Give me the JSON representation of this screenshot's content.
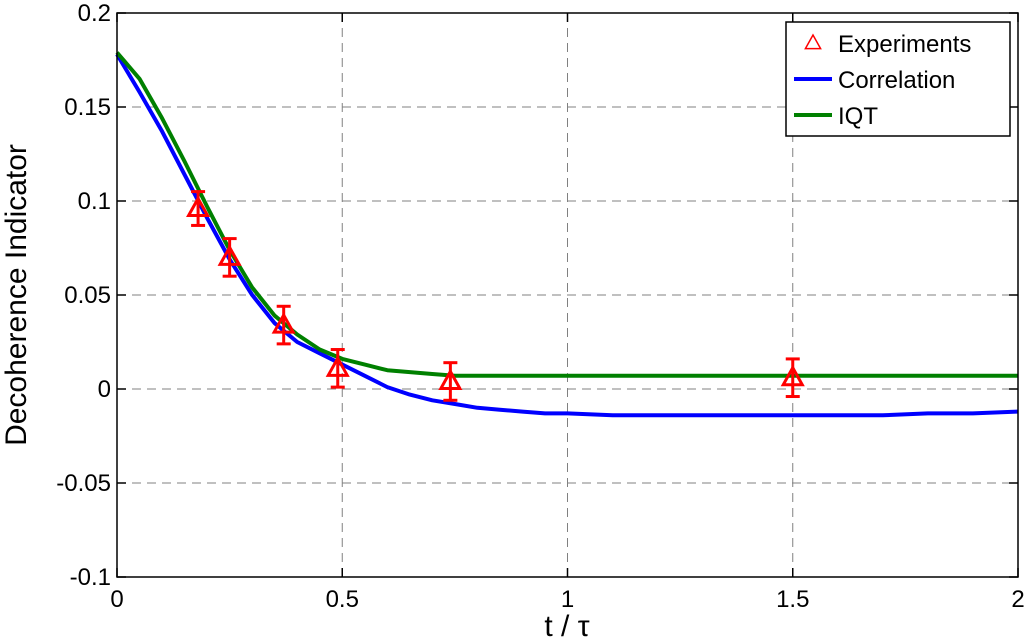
{
  "chart_data": {
    "type": "line",
    "xlabel": "t / τ",
    "ylabel": "Decoherence Indicator",
    "xlim": [
      0,
      2
    ],
    "ylim": [
      -0.1,
      0.2
    ],
    "x_ticks": [
      0,
      0.5,
      1,
      1.5,
      2
    ],
    "x_tick_labels": [
      "0",
      "0.5",
      "1",
      "1.5",
      "2"
    ],
    "y_ticks": [
      -0.1,
      -0.05,
      0,
      0.05,
      0.1,
      0.15,
      0.2
    ],
    "y_tick_labels": [
      "-0.1",
      "-0.05",
      "0",
      "0.05",
      "0.1",
      "0.15",
      "0.2"
    ],
    "grid": true,
    "legend_position": "top-right",
    "series": [
      {
        "name": "Experiments",
        "kind": "scatter-errorbar",
        "color": "#ff0000",
        "x": [
          0.18,
          0.25,
          0.37,
          0.49,
          0.74,
          1.5
        ],
        "y": [
          0.096,
          0.07,
          0.034,
          0.011,
          0.004,
          0.006
        ],
        "error": [
          0.009,
          0.01,
          0.01,
          0.01,
          0.01,
          0.01
        ]
      },
      {
        "name": "Correlation",
        "kind": "line",
        "color": "#0000ff",
        "x": [
          0,
          0.05,
          0.1,
          0.15,
          0.2,
          0.25,
          0.3,
          0.35,
          0.4,
          0.45,
          0.5,
          0.55,
          0.6,
          0.65,
          0.7,
          0.75,
          0.8,
          0.85,
          0.9,
          0.95,
          1.0,
          1.1,
          1.2,
          1.3,
          1.4,
          1.5,
          1.6,
          1.7,
          1.8,
          1.9,
          2.0
        ],
        "y": [
          0.178,
          0.158,
          0.137,
          0.114,
          0.091,
          0.069,
          0.05,
          0.035,
          0.025,
          0.019,
          0.013,
          0.007,
          0.001,
          -0.003,
          -0.006,
          -0.008,
          -0.01,
          -0.011,
          -0.012,
          -0.013,
          -0.013,
          -0.014,
          -0.014,
          -0.014,
          -0.014,
          -0.014,
          -0.014,
          -0.014,
          -0.013,
          -0.013,
          -0.012
        ]
      },
      {
        "name": "IQT",
        "kind": "line",
        "color": "#008000",
        "x": [
          0,
          0.05,
          0.1,
          0.15,
          0.2,
          0.25,
          0.3,
          0.35,
          0.4,
          0.45,
          0.5,
          0.55,
          0.6,
          0.65,
          0.7,
          0.75,
          0.8,
          0.9,
          1.0,
          1.2,
          1.4,
          1.6,
          1.8,
          2.0
        ],
        "y": [
          0.179,
          0.165,
          0.144,
          0.121,
          0.097,
          0.074,
          0.054,
          0.039,
          0.029,
          0.021,
          0.016,
          0.013,
          0.01,
          0.009,
          0.008,
          0.007,
          0.007,
          0.007,
          0.007,
          0.007,
          0.007,
          0.007,
          0.007,
          0.007
        ]
      }
    ]
  }
}
